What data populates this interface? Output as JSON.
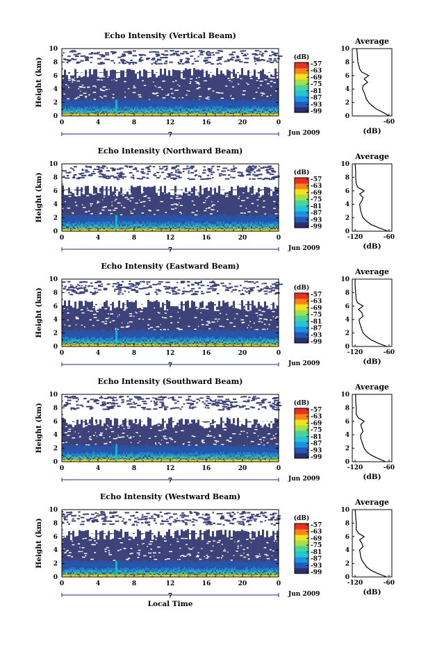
{
  "chart_data": [
    {
      "type": "heatmap",
      "title": "Echo Intensity (Vertical Beam)",
      "ylabel": "Height (km)",
      "x": [
        0,
        4,
        8,
        12,
        16,
        20,
        0
      ],
      "ylim": [
        0,
        10
      ],
      "yticks": [
        0,
        2,
        4,
        6,
        8,
        10
      ],
      "date_label": "Jun 2009",
      "day_marker": "7",
      "colorbar": {
        "unit": "(dB)",
        "ticks": [
          -57,
          -63,
          -69,
          -75,
          -81,
          -87,
          -93,
          -99
        ]
      },
      "cloud_top_km": 6.5,
      "average_profile": {
        "title": "Average",
        "xlabel": "(dB)",
        "xticks": [
          -60
        ],
        "height": [
          0,
          0.5,
          1,
          1.5,
          2,
          2.5,
          3,
          3.5,
          4,
          4.5,
          5,
          5.5,
          6,
          6.5,
          7,
          8,
          9,
          10
        ],
        "db": [
          -60,
          -70,
          -82,
          -90,
          -96,
          -100,
          -102,
          -104,
          -107,
          -106,
          -98,
          -104,
          -96,
          -108,
          -112,
          -115,
          -116,
          -117
        ]
      }
    },
    {
      "type": "heatmap",
      "title": "Echo Intensity (Northward Beam)",
      "ylabel": "Height (km)",
      "x": [
        0,
        4,
        8,
        12,
        16,
        20,
        0
      ],
      "ylim": [
        0,
        10
      ],
      "yticks": [
        0,
        2,
        4,
        6,
        8,
        10
      ],
      "date_label": "Jun 2009",
      "day_marker": "7",
      "colorbar": {
        "unit": "(dB)",
        "ticks": [
          -57,
          -63,
          -69,
          -75,
          -81,
          -87,
          -93,
          -99
        ]
      },
      "cloud_top_km": 6.2,
      "average_profile": {
        "title": "Average",
        "xlabel": "(dB)",
        "xticks": [
          -120,
          -60
        ],
        "height": [
          0,
          0.5,
          1,
          1.5,
          2,
          2.5,
          3,
          3.5,
          4,
          4.5,
          5,
          5.5,
          6,
          6.5,
          7,
          8,
          9,
          10
        ],
        "db": [
          -62,
          -78,
          -92,
          -100,
          -106,
          -108,
          -110,
          -111,
          -112,
          -108,
          -106,
          -112,
          -104,
          -115,
          -118,
          -119,
          -119,
          -120
        ]
      }
    },
    {
      "type": "heatmap",
      "title": "Echo Intensity (Eastward Beam)",
      "ylabel": "Height (km)",
      "x": [
        0,
        4,
        8,
        12,
        16,
        20,
        0
      ],
      "ylim": [
        0,
        10
      ],
      "yticks": [
        0,
        2,
        4,
        6,
        8,
        10
      ],
      "date_label": "Jun 2009",
      "day_marker": "7",
      "colorbar": {
        "unit": "(dB)",
        "ticks": [
          -57,
          -63,
          -69,
          -75,
          -81,
          -87,
          -93,
          -99
        ]
      },
      "cloud_top_km": 6.3,
      "average_profile": {
        "title": "Average",
        "xlabel": "(dB)",
        "xticks": [
          -120,
          -60
        ],
        "height": [
          0,
          0.5,
          1,
          1.5,
          2,
          2.5,
          3,
          3.5,
          4,
          4.5,
          5,
          5.5,
          6,
          6.5,
          7,
          8,
          9,
          10
        ],
        "db": [
          -64,
          -80,
          -92,
          -100,
          -106,
          -108,
          -110,
          -112,
          -113,
          -106,
          -108,
          -114,
          -106,
          -116,
          -118,
          -119,
          -120,
          -120
        ]
      }
    },
    {
      "type": "heatmap",
      "title": "Echo Intensity (Southward Beam)",
      "ylabel": "Height (km)",
      "x": [
        0,
        4,
        8,
        12,
        16,
        20,
        0
      ],
      "ylim": [
        0,
        10
      ],
      "yticks": [
        0,
        2,
        4,
        6,
        8,
        10
      ],
      "date_label": "Jun 2009",
      "day_marker": "7",
      "colorbar": {
        "unit": "(dB)",
        "ticks": [
          -57,
          -63,
          -69,
          -75,
          -81,
          -87,
          -93,
          -99
        ]
      },
      "cloud_top_km": 6.0,
      "average_profile": {
        "title": "Average",
        "xlabel": "(dB)",
        "xticks": [
          -120,
          -60
        ],
        "height": [
          0,
          0.5,
          1,
          1.5,
          2,
          2.5,
          3,
          3.5,
          4,
          4.5,
          5,
          5.5,
          6,
          6.5,
          7,
          8,
          9,
          10
        ],
        "db": [
          -66,
          -80,
          -92,
          -100,
          -104,
          -106,
          -108,
          -110,
          -110,
          -106,
          -108,
          -110,
          -104,
          -114,
          -118,
          -118,
          -119,
          -119
        ]
      }
    },
    {
      "type": "heatmap",
      "title": "Echo Intensity (Westward Beam)",
      "ylabel": "Height (km)",
      "xlabel": "Local Time",
      "x": [
        0,
        4,
        8,
        12,
        16,
        20,
        0
      ],
      "ylim": [
        0,
        10
      ],
      "yticks": [
        0,
        2,
        4,
        6,
        8,
        10
      ],
      "date_label": "Jun 2009",
      "day_marker": "7",
      "colorbar": {
        "unit": "(dB)",
        "ticks": [
          -57,
          -63,
          -69,
          -75,
          -81,
          -87,
          -93,
          -99
        ]
      },
      "cloud_top_km": 6.5,
      "average_profile": {
        "title": "Average",
        "xlabel": "(dB)",
        "xticks": [
          -120,
          -60
        ],
        "height": [
          0,
          0.5,
          1,
          1.5,
          2,
          2.5,
          3,
          3.5,
          4,
          4.5,
          5,
          5.5,
          6,
          6.5,
          7,
          8,
          9,
          10
        ],
        "db": [
          -64,
          -80,
          -92,
          -100,
          -104,
          -108,
          -110,
          -111,
          -112,
          -106,
          -108,
          -112,
          -104,
          -114,
          -118,
          -118,
          -119,
          -120
        ]
      }
    }
  ],
  "colors": {
    "background_cloud": "#3d4278",
    "colormap": [
      "#2b2f6e",
      "#2459b6",
      "#1b93e0",
      "#26c2d6",
      "#48d49a",
      "#a3e04a",
      "#f2e31c",
      "#f7861a",
      "#e83020"
    ]
  }
}
